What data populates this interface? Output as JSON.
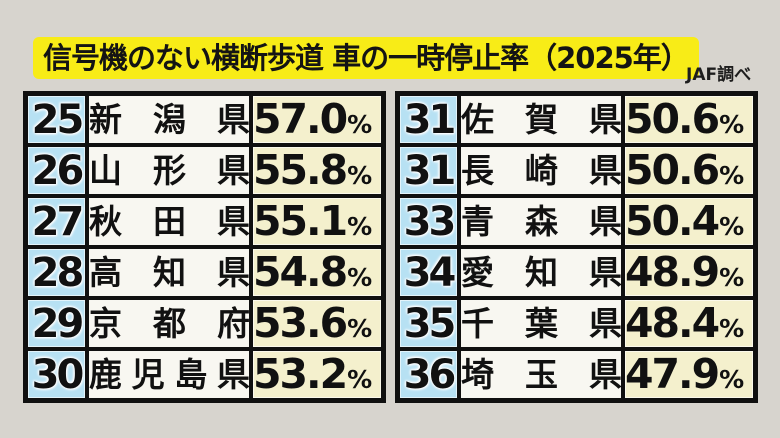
{
  "header": {
    "title": "信号機のない横断歩道 車の一時停止率（2025年）",
    "source": "JAF調べ"
  },
  "percent_unit": "%",
  "tables": {
    "left": {
      "rows": [
        {
          "rank": "25",
          "prefecture": "新潟県",
          "rate": "57.0"
        },
        {
          "rank": "26",
          "prefecture": "山形県",
          "rate": "55.8"
        },
        {
          "rank": "27",
          "prefecture": "秋田県",
          "rate": "55.1"
        },
        {
          "rank": "28",
          "prefecture": "高知県",
          "rate": "54.8"
        },
        {
          "rank": "29",
          "prefecture": "京都府",
          "rate": "53.6"
        },
        {
          "rank": "30",
          "prefecture": "鹿児島県",
          "rate": "53.2"
        }
      ]
    },
    "right": {
      "rows": [
        {
          "rank": "31",
          "prefecture": "佐賀県",
          "rate": "50.6"
        },
        {
          "rank": "31",
          "prefecture": "長崎県",
          "rate": "50.6"
        },
        {
          "rank": "33",
          "prefecture": "青森県",
          "rate": "50.4"
        },
        {
          "rank": "34",
          "prefecture": "愛知県",
          "rate": "48.9"
        },
        {
          "rank": "35",
          "prefecture": "千葉県",
          "rate": "48.4"
        },
        {
          "rank": "36",
          "prefecture": "埼玉県",
          "rate": "47.9"
        }
      ]
    }
  },
  "colors": {
    "page_bg": "#d7d4ce",
    "title_bg": "#f8ec17",
    "rank_cell_bg": "#b7e1f3",
    "prefecture_cell_bg": "#f8f7f1",
    "rate_cell_bg": "#f4f0cd",
    "border": "#101010",
    "text": "#111111"
  },
  "chart_data": {
    "type": "table",
    "title": "信号機のない横断歩道 車の一時停止率（2025年）",
    "source": "JAF調べ",
    "unit": "%",
    "rows": [
      {
        "rank": 25,
        "prefecture": "新潟県",
        "rate_percent": 57.0
      },
      {
        "rank": 26,
        "prefecture": "山形県",
        "rate_percent": 55.8
      },
      {
        "rank": 27,
        "prefecture": "秋田県",
        "rate_percent": 55.1
      },
      {
        "rank": 28,
        "prefecture": "高知県",
        "rate_percent": 54.8
      },
      {
        "rank": 29,
        "prefecture": "京都府",
        "rate_percent": 53.6
      },
      {
        "rank": 30,
        "prefecture": "鹿児島県",
        "rate_percent": 53.2
      },
      {
        "rank": 31,
        "prefecture": "佐賀県",
        "rate_percent": 50.6
      },
      {
        "rank": 31,
        "prefecture": "長崎県",
        "rate_percent": 50.6
      },
      {
        "rank": 33,
        "prefecture": "青森県",
        "rate_percent": 50.4
      },
      {
        "rank": 34,
        "prefecture": "愛知県",
        "rate_percent": 48.9
      },
      {
        "rank": 35,
        "prefecture": "千葉県",
        "rate_percent": 48.4
      },
      {
        "rank": 36,
        "prefecture": "埼玉県",
        "rate_percent": 47.9
      }
    ],
    "layout": "two side-by-side columns of 6 rows, ranks 25-30 left, 31-36 right"
  }
}
